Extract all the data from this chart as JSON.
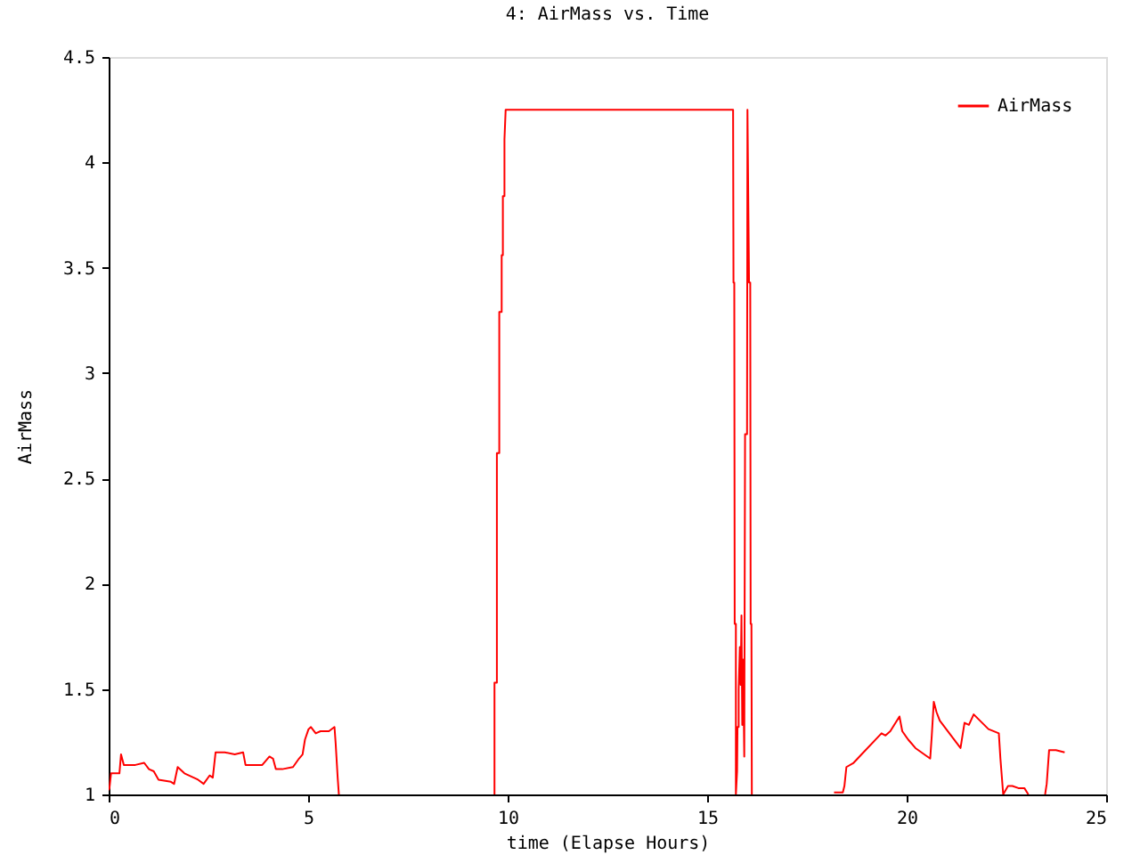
{
  "chart_data": {
    "type": "line",
    "title": "4: AirMass vs. Time",
    "xlabel": "time (Elapse Hours)",
    "ylabel": "AirMass",
    "xlim": [
      0,
      25
    ],
    "xticks": [
      0,
      5,
      10,
      15,
      20,
      25
    ],
    "ylim": [
      1,
      4.5
    ],
    "yticks": [
      1,
      1.5,
      2,
      2.5,
      3,
      3.5,
      4,
      4.5
    ],
    "legend": "top right",
    "grid": false,
    "marker": "none",
    "line_style": "solid",
    "series": [
      {
        "name": "AirMass",
        "color": "#ff0000",
        "x": [
          0,
          0.02,
          0.06,
          0.27,
          0.31,
          0.38,
          0.67,
          0.89,
          1.01,
          1.13,
          1.25,
          1.56,
          1.64,
          1.73,
          1.9,
          2.24,
          2.38,
          2.53,
          2.61,
          2.68,
          2.91,
          3.16,
          3.37,
          3.43,
          3.85,
          4.03,
          4.12,
          4.19,
          4.35,
          4.62,
          4.77,
          4.86,
          4.92,
          5.01,
          5.07,
          5.19,
          5.31,
          5.52,
          5.66,
          5.69,
          5.74,
          5.77,
          7.5,
          9.67,
          9.67,
          9.73,
          9.73,
          9.79,
          9.79,
          9.85,
          9.85,
          9.88,
          9.88,
          9.92,
          9.92,
          9.95,
          15.65,
          15.66,
          15.68,
          15.69,
          15.72,
          15.72,
          15.75,
          15.76,
          15.79,
          15.79,
          15.82,
          15.84,
          15.86,
          15.88,
          15.9,
          15.93,
          15.95,
          16.0,
          16.01,
          16.05,
          16.08,
          16.09,
          16.11,
          16.12,
          17.0,
          18.18,
          18.4,
          18.44,
          18.49,
          18.67,
          18.77,
          19.37,
          19.47,
          19.59,
          19.82,
          19.89,
          20.04,
          20.22,
          20.59,
          20.63,
          20.68,
          20.75,
          20.83,
          21.35,
          21.45,
          21.56,
          21.68,
          22.05,
          22.31,
          22.35,
          22.42,
          22.54,
          22.65,
          22.8,
          22.95,
          23.05,
          23.3,
          23.47,
          23.51,
          23.57,
          23.74,
          23.96
        ],
        "values": [
          1.02,
          1.03,
          1.1,
          1.1,
          1.19,
          1.14,
          1.14,
          1.15,
          1.12,
          1.11,
          1.07,
          1.06,
          1.05,
          1.13,
          1.1,
          1.07,
          1.05,
          1.09,
          1.08,
          1.2,
          1.2,
          1.19,
          1.2,
          1.14,
          1.14,
          1.18,
          1.17,
          1.12,
          1.12,
          1.13,
          1.17,
          1.19,
          1.26,
          1.31,
          1.32,
          1.29,
          1.3,
          1.3,
          1.32,
          1.24,
          1.08,
          1.0,
          null,
          1.0,
          1.53,
          1.53,
          2.62,
          2.62,
          3.29,
          3.29,
          3.56,
          3.56,
          3.84,
          3.84,
          4.11,
          4.25,
          4.25,
          3.43,
          3.43,
          1.81,
          1.81,
          1.0,
          1.11,
          1.32,
          1.32,
          1.5,
          1.7,
          1.52,
          1.85,
          1.33,
          1.64,
          1.18,
          2.71,
          2.71,
          4.25,
          3.43,
          3.43,
          1.81,
          1.81,
          1.0,
          null,
          1.01,
          1.01,
          1.04,
          1.13,
          1.15,
          1.17,
          1.29,
          1.28,
          1.3,
          1.37,
          1.3,
          1.26,
          1.22,
          1.17,
          1.28,
          1.44,
          1.39,
          1.35,
          1.22,
          1.34,
          1.33,
          1.38,
          1.31,
          1.29,
          1.17,
          1.0,
          1.04,
          1.04,
          1.03,
          1.03,
          1.0,
          null,
          1.0,
          1.05,
          1.21,
          1.21,
          1.2
        ]
      }
    ]
  }
}
